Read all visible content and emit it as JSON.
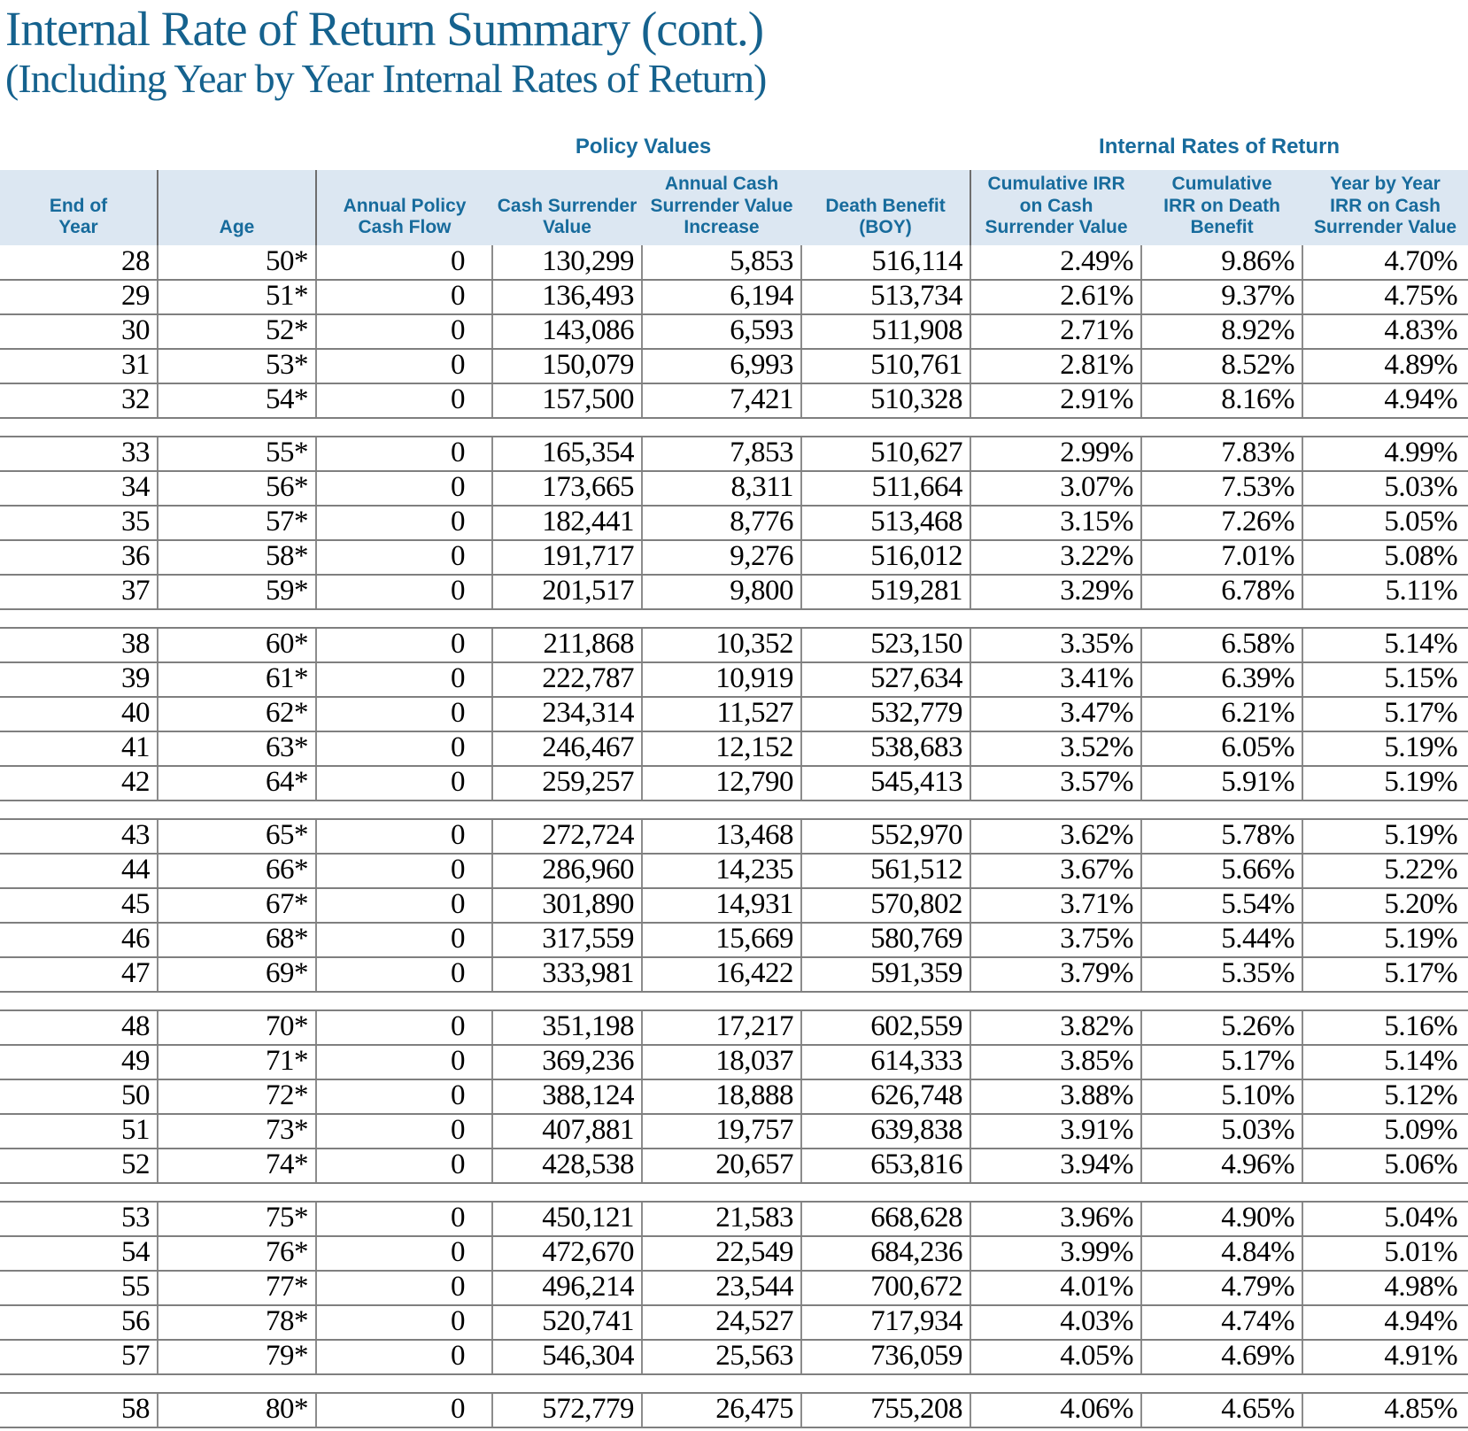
{
  "page_title": "Internal Rate of Return Summary (cont.)",
  "page_subtitle": "(Including Year by Year Internal Rates of Return)",
  "colors": {
    "accent_blue": "#176B9C",
    "title_blue": "#15628E",
    "header_band_bg": "#DCE7F2",
    "grid_line": "#7F7F7F",
    "data_text": "#000000"
  },
  "table": {
    "section_headers": [
      {
        "label": "Policy Values"
      },
      {
        "label": "Internal Rates of Return"
      }
    ],
    "columns": [
      {
        "key": "end_of_year",
        "lines": [
          "End of",
          "Year"
        ]
      },
      {
        "key": "age",
        "lines": [
          "Age"
        ]
      },
      {
        "key": "annual_policy_cash_flow",
        "lines": [
          "Annual Policy",
          "Cash Flow"
        ]
      },
      {
        "key": "cash_surrender_value",
        "lines": [
          "Cash Surrender",
          "Value"
        ]
      },
      {
        "key": "annual_cash_surrender_value_increase",
        "lines": [
          "Annual Cash",
          "Surrender Value",
          "Increase"
        ]
      },
      {
        "key": "death_benefit_boy",
        "lines": [
          "Death Benefit",
          "(BOY)"
        ]
      },
      {
        "key": "cumulative_irr_on_cash_surrender_value",
        "lines": [
          "Cumulative IRR",
          "on Cash",
          "Surrender Value"
        ]
      },
      {
        "key": "cumulative_irr_on_death_benefit",
        "lines": [
          "Cumulative",
          "IRR on Death",
          "Benefit"
        ]
      },
      {
        "key": "year_by_year_irr_on_cash_surrender_value",
        "lines": [
          "Year by Year",
          "IRR on Cash",
          "Surrender Value"
        ]
      }
    ],
    "row_groups": [
      [
        [
          "28",
          "50*",
          "0",
          "130,299",
          "5,853",
          "516,114",
          "2.49%",
          "9.86%",
          "4.70%"
        ],
        [
          "29",
          "51*",
          "0",
          "136,493",
          "6,194",
          "513,734",
          "2.61%",
          "9.37%",
          "4.75%"
        ],
        [
          "30",
          "52*",
          "0",
          "143,086",
          "6,593",
          "511,908",
          "2.71%",
          "8.92%",
          "4.83%"
        ],
        [
          "31",
          "53*",
          "0",
          "150,079",
          "6,993",
          "510,761",
          "2.81%",
          "8.52%",
          "4.89%"
        ],
        [
          "32",
          "54*",
          "0",
          "157,500",
          "7,421",
          "510,328",
          "2.91%",
          "8.16%",
          "4.94%"
        ]
      ],
      [
        [
          "33",
          "55*",
          "0",
          "165,354",
          "7,853",
          "510,627",
          "2.99%",
          "7.83%",
          "4.99%"
        ],
        [
          "34",
          "56*",
          "0",
          "173,665",
          "8,311",
          "511,664",
          "3.07%",
          "7.53%",
          "5.03%"
        ],
        [
          "35",
          "57*",
          "0",
          "182,441",
          "8,776",
          "513,468",
          "3.15%",
          "7.26%",
          "5.05%"
        ],
        [
          "36",
          "58*",
          "0",
          "191,717",
          "9,276",
          "516,012",
          "3.22%",
          "7.01%",
          "5.08%"
        ],
        [
          "37",
          "59*",
          "0",
          "201,517",
          "9,800",
          "519,281",
          "3.29%",
          "6.78%",
          "5.11%"
        ]
      ],
      [
        [
          "38",
          "60*",
          "0",
          "211,868",
          "10,352",
          "523,150",
          "3.35%",
          "6.58%",
          "5.14%"
        ],
        [
          "39",
          "61*",
          "0",
          "222,787",
          "10,919",
          "527,634",
          "3.41%",
          "6.39%",
          "5.15%"
        ],
        [
          "40",
          "62*",
          "0",
          "234,314",
          "11,527",
          "532,779",
          "3.47%",
          "6.21%",
          "5.17%"
        ],
        [
          "41",
          "63*",
          "0",
          "246,467",
          "12,152",
          "538,683",
          "3.52%",
          "6.05%",
          "5.19%"
        ],
        [
          "42",
          "64*",
          "0",
          "259,257",
          "12,790",
          "545,413",
          "3.57%",
          "5.91%",
          "5.19%"
        ]
      ],
      [
        [
          "43",
          "65*",
          "0",
          "272,724",
          "13,468",
          "552,970",
          "3.62%",
          "5.78%",
          "5.19%"
        ],
        [
          "44",
          "66*",
          "0",
          "286,960",
          "14,235",
          "561,512",
          "3.67%",
          "5.66%",
          "5.22%"
        ],
        [
          "45",
          "67*",
          "0",
          "301,890",
          "14,931",
          "570,802",
          "3.71%",
          "5.54%",
          "5.20%"
        ],
        [
          "46",
          "68*",
          "0",
          "317,559",
          "15,669",
          "580,769",
          "3.75%",
          "5.44%",
          "5.19%"
        ],
        [
          "47",
          "69*",
          "0",
          "333,981",
          "16,422",
          "591,359",
          "3.79%",
          "5.35%",
          "5.17%"
        ]
      ],
      [
        [
          "48",
          "70*",
          "0",
          "351,198",
          "17,217",
          "602,559",
          "3.82%",
          "5.26%",
          "5.16%"
        ],
        [
          "49",
          "71*",
          "0",
          "369,236",
          "18,037",
          "614,333",
          "3.85%",
          "5.17%",
          "5.14%"
        ],
        [
          "50",
          "72*",
          "0",
          "388,124",
          "18,888",
          "626,748",
          "3.88%",
          "5.10%",
          "5.12%"
        ],
        [
          "51",
          "73*",
          "0",
          "407,881",
          "19,757",
          "639,838",
          "3.91%",
          "5.03%",
          "5.09%"
        ],
        [
          "52",
          "74*",
          "0",
          "428,538",
          "20,657",
          "653,816",
          "3.94%",
          "4.96%",
          "5.06%"
        ]
      ],
      [
        [
          "53",
          "75*",
          "0",
          "450,121",
          "21,583",
          "668,628",
          "3.96%",
          "4.90%",
          "5.04%"
        ],
        [
          "54",
          "76*",
          "0",
          "472,670",
          "22,549",
          "684,236",
          "3.99%",
          "4.84%",
          "5.01%"
        ],
        [
          "55",
          "77*",
          "0",
          "496,214",
          "23,544",
          "700,672",
          "4.01%",
          "4.79%",
          "4.98%"
        ],
        [
          "56",
          "78*",
          "0",
          "520,741",
          "24,527",
          "717,934",
          "4.03%",
          "4.74%",
          "4.94%"
        ],
        [
          "57",
          "79*",
          "0",
          "546,304",
          "25,563",
          "736,059",
          "4.05%",
          "4.69%",
          "4.91%"
        ]
      ],
      [
        [
          "58",
          "80*",
          "0",
          "572,779",
          "26,475",
          "755,208",
          "4.06%",
          "4.65%",
          "4.85%"
        ]
      ]
    ]
  }
}
